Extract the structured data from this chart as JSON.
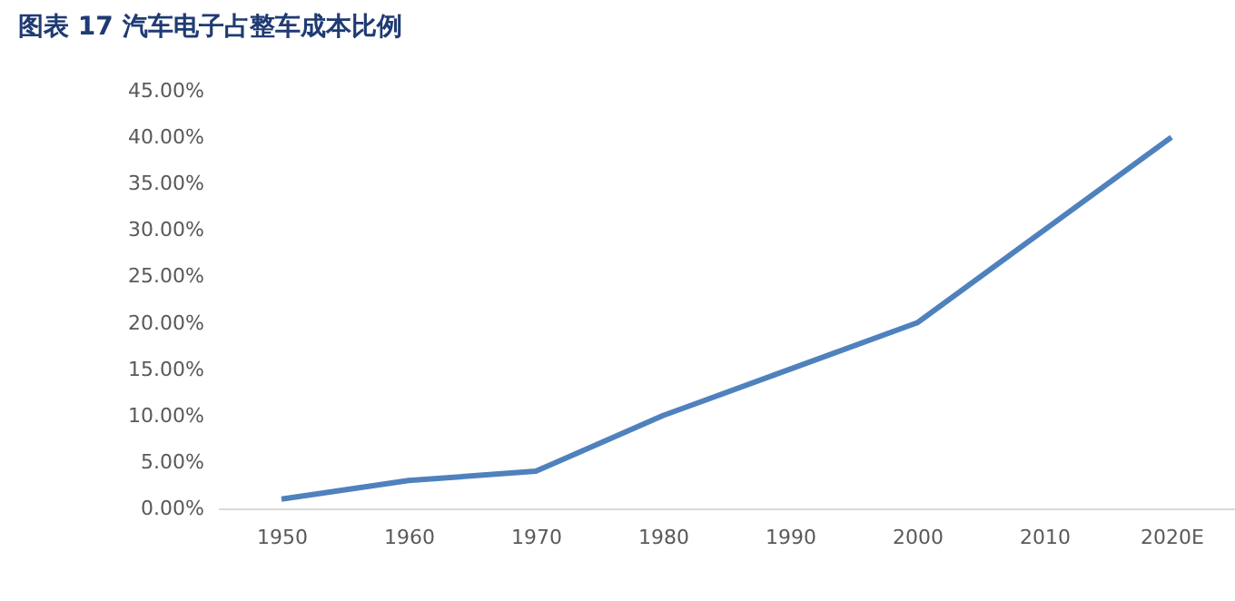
{
  "chart_data": {
    "type": "line",
    "title": "图表 17 汽车电子占整车成本比例",
    "categories": [
      "1950",
      "1960",
      "1970",
      "1980",
      "1990",
      "2000",
      "2010",
      "2020E"
    ],
    "series": [
      {
        "color": "#4f81bd",
        "values": [
          1,
          3,
          4,
          10,
          15,
          20,
          30,
          40
        ]
      }
    ],
    "ylim": [
      0,
      45
    ],
    "yticks": [
      {
        "value": 0,
        "label": "0.00%"
      },
      {
        "value": 5,
        "label": "5.00%"
      },
      {
        "value": 10,
        "label": "10.00%"
      },
      {
        "value": 15,
        "label": "15.00%"
      },
      {
        "value": 20,
        "label": "20.00%"
      },
      {
        "value": 25,
        "label": "25.00%"
      },
      {
        "value": 30,
        "label": "30.00%"
      },
      {
        "value": 35,
        "label": "35.00%"
      },
      {
        "value": 40,
        "label": "40.00%"
      },
      {
        "value": 45,
        "label": "45.00%"
      }
    ],
    "grid": false,
    "legend": false,
    "marker": "none",
    "line_style": "solid"
  }
}
